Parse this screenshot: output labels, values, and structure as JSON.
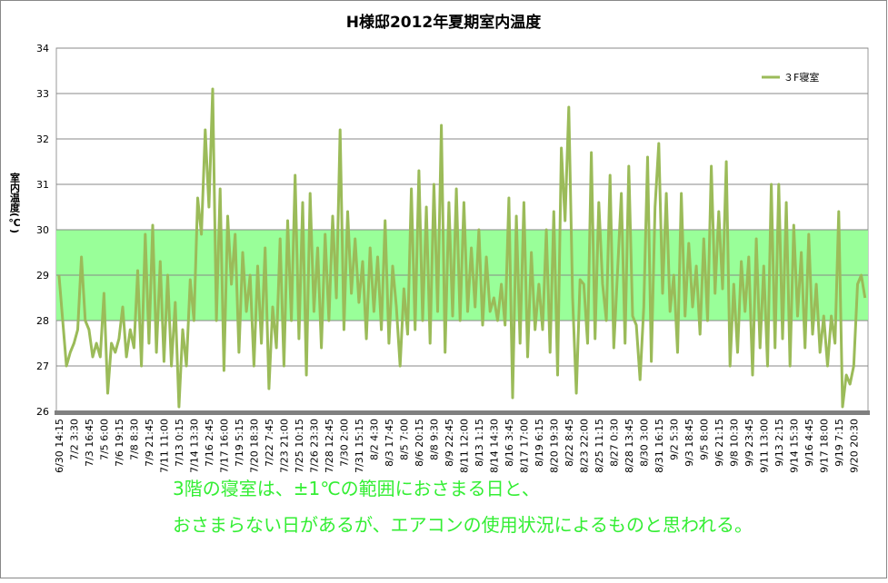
{
  "chart_data": {
    "type": "line",
    "title": "H様邸2012年夏期室内温度",
    "y_label": "室内温度(℃)",
    "annotation": [
      "3階の寝室は、±1℃の範囲におさまる日と、",
      "おさまらない日があるが、エアコンの使用状況によるものと思われる。"
    ],
    "ylim": [
      26,
      34
    ],
    "yticks": [
      26,
      27,
      28,
      29,
      30,
      31,
      32,
      33,
      34
    ],
    "grid": true,
    "legend": "top-right",
    "bands": [
      {
        "from": 28,
        "to": 30,
        "color": "#99ff99"
      }
    ],
    "categories": [
      "6/30 14:15",
      null,
      null,
      null,
      "7/2 3:30",
      null,
      null,
      null,
      "7/3 16:45",
      null,
      null,
      null,
      "7/5 6:00",
      null,
      null,
      null,
      "7/6 19:15",
      null,
      null,
      null,
      "7/8 8:30",
      null,
      null,
      null,
      "7/9 21:45",
      null,
      null,
      null,
      "7/11 11:00",
      null,
      null,
      null,
      "7/13 0:15",
      null,
      null,
      null,
      "7/14 13:30",
      null,
      null,
      null,
      "7/16 2:45",
      null,
      null,
      null,
      "7/17 16:00",
      null,
      null,
      null,
      "7/19 5:15",
      null,
      null,
      null,
      "7/20 18:30",
      null,
      null,
      null,
      "7/22 7:45",
      null,
      null,
      null,
      "7/23 21:00",
      null,
      null,
      null,
      "7/25 10:15",
      null,
      null,
      null,
      "7/26 23:30",
      null,
      null,
      null,
      "7/28 12:45",
      null,
      null,
      null,
      "7/30 2:00",
      null,
      null,
      null,
      "7/31 15:15",
      null,
      null,
      null,
      "8/2 4:30",
      null,
      null,
      null,
      "8/3 17:45",
      null,
      null,
      null,
      "8/5 7:00",
      null,
      null,
      null,
      "8/6 20:15",
      null,
      null,
      null,
      "8/8 9:30",
      null,
      null,
      null,
      "8/9 22:45",
      null,
      null,
      null,
      "8/11 12:00",
      null,
      null,
      null,
      "8/13 1:15",
      null,
      null,
      null,
      "8/14 14:30",
      null,
      null,
      null,
      "8/16 3:45",
      null,
      null,
      null,
      "8/17 17:00",
      null,
      null,
      null,
      "8/19 6:15",
      null,
      null,
      null,
      "8/20 19:30",
      null,
      null,
      null,
      "8/22 8:45",
      null,
      null,
      null,
      "8/23 22:00",
      null,
      null,
      null,
      "8/25 11:15",
      null,
      null,
      null,
      "8/27 0:30",
      null,
      null,
      null,
      "8/28 13:45",
      null,
      null,
      null,
      "8/30 3:00",
      null,
      null,
      null,
      "8/31 16:15",
      null,
      null,
      null,
      "9/2 5:30",
      null,
      null,
      null,
      "9/3 18:45",
      null,
      null,
      null,
      "9/5 8:00",
      null,
      null,
      null,
      "9/6 21:15",
      null,
      null,
      null,
      "9/8 10:30",
      null,
      null,
      null,
      "9/9 23:45",
      null,
      null,
      null,
      "9/11 13:00",
      null,
      null,
      null,
      "9/13 2:15",
      null,
      null,
      null,
      "9/14 15:30",
      null,
      null,
      null,
      "9/16 4:45",
      null,
      null,
      null,
      "9/17 18:00",
      null,
      null,
      null,
      "9/19 7:15",
      null,
      null,
      null,
      "9/20 20:30",
      null,
      null,
      null
    ],
    "series": [
      {
        "name": "３F寝室",
        "color": "#9bbb59",
        "values": [
          29,
          28,
          27,
          27.3,
          27.5,
          27.8,
          29.4,
          28,
          27.8,
          27.2,
          27.5,
          27.2,
          28.6,
          26.4,
          27.5,
          27.3,
          27.6,
          28.3,
          27.2,
          27.8,
          27.4,
          29.1,
          27.0,
          29.9,
          27.5,
          30.1,
          27.3,
          29.3,
          27.1,
          29.0,
          27.0,
          28.4,
          26.1,
          27.8,
          27.0,
          28.9,
          28.0,
          30.7,
          29.9,
          32.2,
          30.5,
          33.1,
          28.0,
          30.9,
          26.9,
          30.3,
          28.8,
          29.9,
          27.3,
          29.5,
          28.2,
          29.0,
          27.0,
          29.2,
          27.5,
          29.6,
          26.5,
          28.3,
          27.4,
          29.8,
          27.0,
          30.2,
          28.0,
          31.2,
          27.6,
          30.6,
          26.8,
          30.8,
          28.2,
          29.6,
          27.4,
          29.9,
          28.0,
          30.3,
          28.5,
          32.2,
          27.8,
          30.4,
          28.6,
          29.8,
          28.4,
          29.3,
          27.6,
          29.6,
          28.2,
          29.4,
          27.8,
          30.2,
          27.5,
          29.2,
          28.3,
          27.0,
          28.7,
          27.7,
          30.9,
          27.8,
          31.3,
          28.0,
          30.5,
          27.5,
          31.0,
          28.2,
          32.3,
          27.3,
          30.6,
          28.1,
          30.9,
          28.0,
          30.6,
          28.2,
          29.6,
          28.3,
          30.0,
          27.9,
          29.4,
          28.2,
          28.5,
          28.0,
          28.8,
          27.9,
          30.7,
          26.3,
          30.3,
          27.5,
          30.6,
          27.2,
          29.5,
          27.8,
          28.8,
          27.8,
          30.0,
          27.3,
          30.4,
          26.8,
          31.8,
          30.2,
          32.7,
          28.5,
          26.4,
          28.9,
          28.8,
          27.5,
          31.7,
          27.6,
          30.6,
          28.8,
          28.0,
          31.2,
          27.4,
          29.1,
          30.8,
          27.5,
          31.4,
          28.1,
          27.9,
          26.7,
          28.3,
          31.6,
          27.1,
          30.5,
          31.9,
          28.6,
          30.8,
          28.2,
          29.0,
          27.3,
          30.8,
          28.1,
          29.7,
          28.3,
          29.2,
          27.7,
          29.8,
          28.0,
          31.4,
          28.6,
          30.4,
          28.7,
          31.5,
          27.0,
          28.8,
          27.3,
          29.3,
          28.2,
          29.4,
          26.8,
          29.8,
          27.4,
          29.2,
          27.0,
          31.0,
          27.4,
          31.0,
          27.6,
          30.6,
          27.0,
          30.1,
          28.1,
          29.5,
          27.4,
          29.9,
          27.7,
          28.8,
          27.3,
          28.1,
          27.0,
          28.1,
          27.5,
          30.4,
          26.1,
          26.8,
          26.6,
          27.0,
          28.8,
          29.0,
          28.5
        ]
      }
    ]
  }
}
